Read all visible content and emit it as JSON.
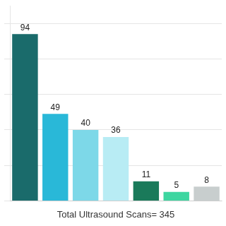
{
  "chart_data": {
    "type": "bar",
    "categories": [
      null,
      null,
      null,
      null,
      null,
      null,
      null
    ],
    "values": [
      94,
      49,
      40,
      36,
      11,
      5,
      8
    ],
    "colors": [
      "#1a6b6b",
      "#29b8d8",
      "#7dd8e8",
      "#b8ecf4",
      "#1a7a5a",
      "#3dd6a0",
      "#c8cece"
    ],
    "xlabel": "Total Ultrasound Scans= 345",
    "ylim": [
      0,
      110
    ],
    "yticks": [
      0,
      20,
      40,
      60,
      80,
      100
    ],
    "grid": true,
    "data_labels": true,
    "tick_labels": false
  }
}
